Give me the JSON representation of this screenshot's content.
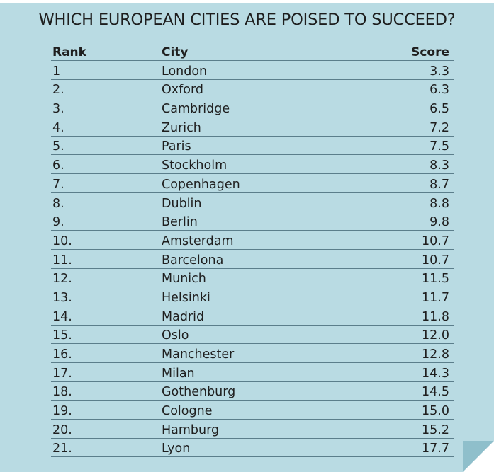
{
  "title": "WHICH EUROPEAN CITIES ARE POISED TO SUCCEED?",
  "colors": {
    "background": "#b9dbe3",
    "rule": "#5b7e8b",
    "text": "#1f1f1f"
  },
  "chart_data": {
    "type": "table",
    "title": "WHICH EUROPEAN CITIES ARE POISED TO SUCCEED?",
    "columns": [
      "Rank",
      "City",
      "Score"
    ],
    "rows": [
      [
        "1",
        "London",
        "3.3"
      ],
      [
        "2.",
        "Oxford",
        "6.3"
      ],
      [
        "3.",
        "Cambridge",
        "6.5"
      ],
      [
        "4.",
        "Zurich",
        "7.2"
      ],
      [
        "5.",
        "Paris",
        "7.5"
      ],
      [
        "6.",
        "Stockholm",
        "8.3"
      ],
      [
        "7.",
        "Copenhagen",
        "8.7"
      ],
      [
        "8.",
        "Dublin",
        "8.8"
      ],
      [
        "9.",
        "Berlin",
        "9.8"
      ],
      [
        "10.",
        "Amsterdam",
        "10.7"
      ],
      [
        "11.",
        "Barcelona",
        "10.7"
      ],
      [
        "12.",
        "Munich",
        "11.5"
      ],
      [
        "13.",
        "Helsinki",
        "11.7"
      ],
      [
        "14.",
        "Madrid",
        "11.8"
      ],
      [
        "15.",
        "Oslo",
        "12.0"
      ],
      [
        "16.",
        "Manchester",
        "12.8"
      ],
      [
        "17.",
        "Milan",
        "14.3"
      ],
      [
        "18.",
        "Gothenburg",
        "14.5"
      ],
      [
        "19.",
        "Cologne",
        "15.0"
      ],
      [
        "20.",
        "Hamburg",
        "15.2"
      ],
      [
        "21.",
        "Lyon",
        "17.7"
      ]
    ]
  }
}
